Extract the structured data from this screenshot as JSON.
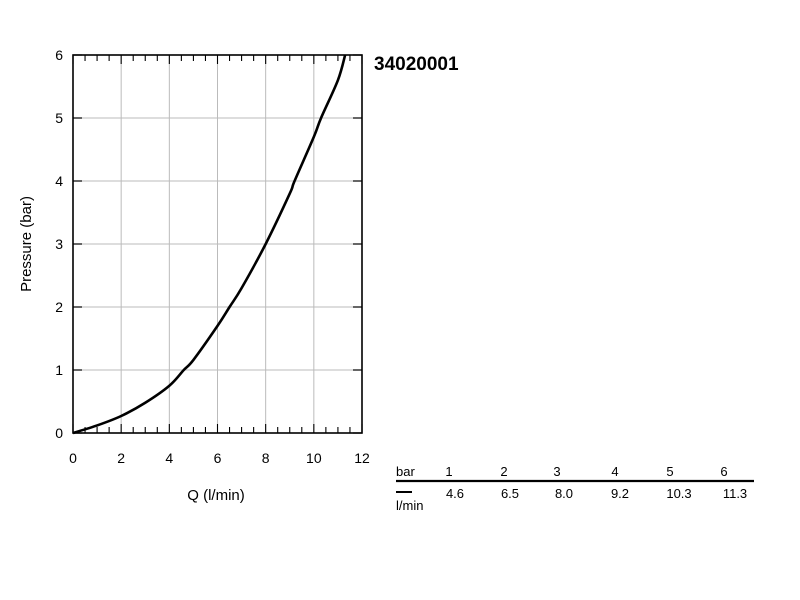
{
  "model_code": "34020001",
  "chart_data": {
    "type": "line",
    "xlabel": "Q (l/min)",
    "ylabel": "Pressure (bar)",
    "xlim": [
      0,
      12
    ],
    "ylim": [
      0,
      6
    ],
    "x_ticks": [
      "0",
      "2",
      "4",
      "6",
      "8",
      "10",
      "12"
    ],
    "y_ticks": [
      "0",
      "1",
      "2",
      "3",
      "4",
      "5",
      "6"
    ],
    "grid": true,
    "series": [
      {
        "x": [
          0,
          1,
          2,
          3,
          4,
          4.6,
          5,
          6,
          6.5,
          7,
          8,
          9,
          9.2,
          10,
          10.3,
          11,
          11.3
        ],
        "y": [
          0,
          0.12,
          0.27,
          0.48,
          0.75,
          1,
          1.16,
          1.7,
          2,
          2.3,
          3,
          3.8,
          4,
          4.7,
          5,
          5.6,
          6
        ]
      }
    ]
  },
  "table": {
    "row1_label": "bar",
    "row2_label": "l/min",
    "bar": [
      "1",
      "2",
      "3",
      "4",
      "5",
      "6"
    ],
    "flow": [
      "4.6",
      "6.5",
      "8.0",
      "9.2",
      "10.3",
      "11.3"
    ]
  }
}
